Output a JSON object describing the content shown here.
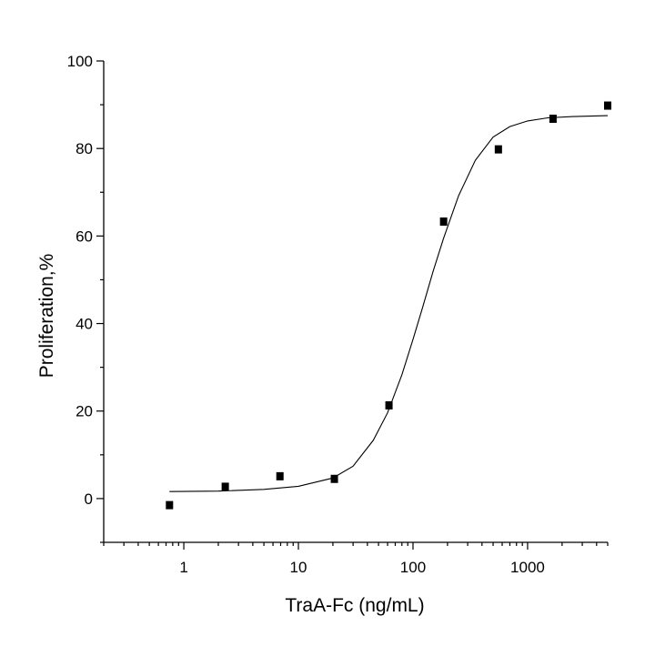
{
  "chart_data": {
    "type": "scatter",
    "title": "",
    "xlabel": "TraA-Fc (ng/mL)",
    "ylabel": "Proliferation,%",
    "x_scale": "log",
    "xlim": [
      0.2,
      5000
    ],
    "ylim": [
      -10,
      100
    ],
    "x_tick_labels": [
      "1",
      "10",
      "100",
      "1000"
    ],
    "y_tick_labels": [
      "0",
      "20",
      "40",
      "60",
      "80",
      "100"
    ],
    "grid": false,
    "legend": "none",
    "colors": {
      "points": "#000000",
      "fit_line": "#000000",
      "axes": "#000000"
    },
    "series": [
      {
        "kind": "points",
        "x": [
          0.75,
          2.3,
          6.9,
          20.6,
          61.7,
          185,
          556,
          1667,
          5000
        ],
        "y": [
          -1.5,
          2.7,
          5.1,
          4.5,
          21.3,
          63.3,
          79.8,
          86.8,
          89.8
        ]
      },
      {
        "kind": "fit-line",
        "x": [
          0.75,
          2,
          5,
          10,
          20,
          30,
          45,
          60,
          80,
          100,
          120,
          150,
          185,
          250,
          350,
          500,
          700,
          1000,
          1500,
          2500,
          5000
        ],
        "y": [
          1.6,
          1.7,
          2.1,
          2.8,
          4.7,
          7.4,
          13.3,
          19.6,
          28.3,
          36.4,
          43.3,
          52.0,
          59.5,
          69.2,
          77.3,
          82.6,
          85.0,
          86.3,
          87.0,
          87.3,
          87.5
        ]
      }
    ]
  }
}
